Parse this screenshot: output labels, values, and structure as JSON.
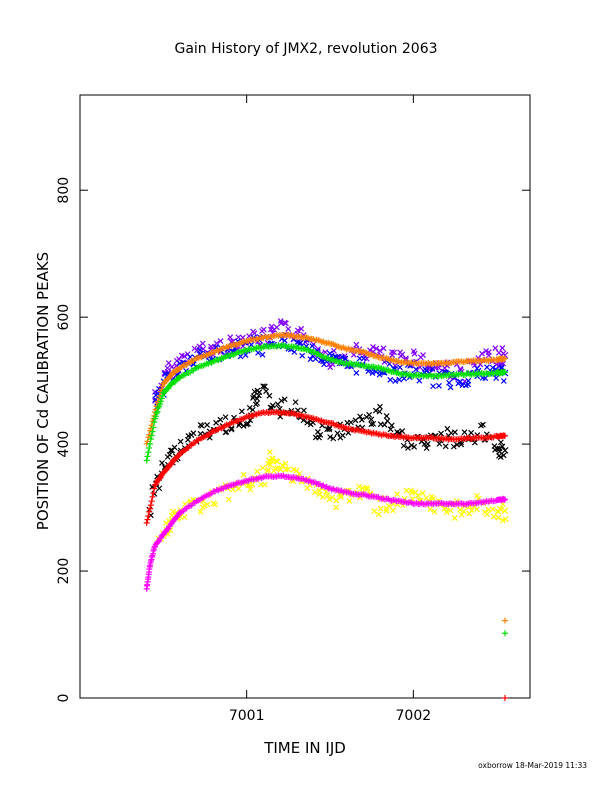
{
  "chart_data": {
    "type": "scatter",
    "title": "Gain History of JMX2, revolution 2063",
    "xlabel": "TIME IN IJD",
    "ylabel": "POSITION OF Cd CALIBRATION PEAKS",
    "xlim": [
      7000.0,
      7002.7
    ],
    "ylim": [
      0,
      950
    ],
    "x_ticks": [
      7001,
      7002
    ],
    "y_ticks": [
      0,
      200,
      400,
      600,
      800
    ],
    "grid": false,
    "footer": "oxborrow 18-Mar-2019 11:33",
    "series": [
      {
        "color": "#ff8000",
        "marker": "plus",
        "x": [
          7000.4,
          7000.45,
          7000.5,
          7000.55,
          7000.6,
          7000.7,
          7000.8,
          7000.9,
          7001.0,
          7001.1,
          7001.2,
          7001.3,
          7001.4,
          7001.5,
          7001.6,
          7001.7,
          7001.8,
          7001.9,
          7002.0,
          7002.1,
          7002.2,
          7002.3,
          7002.4,
          7002.5,
          7002.55
        ],
        "y": [
          400,
          450,
          495,
          510,
          520,
          535,
          545,
          555,
          562,
          568,
          572,
          570,
          565,
          558,
          550,
          545,
          537,
          530,
          527,
          527,
          528,
          530,
          531,
          533,
          535
        ]
      },
      {
        "color": "#00e000",
        "marker": "plus",
        "x": [
          7000.4,
          7000.45,
          7000.5,
          7000.55,
          7000.6,
          7000.7,
          7000.8,
          7000.9,
          7001.0,
          7001.1,
          7001.2,
          7001.3,
          7001.4,
          7001.5,
          7001.6,
          7001.7,
          7001.8,
          7001.9,
          7002.0,
          7002.1,
          7002.2,
          7002.3,
          7002.4,
          7002.5,
          7002.55
        ],
        "y": [
          375,
          440,
          480,
          495,
          505,
          520,
          530,
          540,
          548,
          553,
          555,
          553,
          545,
          533,
          527,
          524,
          520,
          512,
          508,
          508,
          508,
          510,
          511,
          512,
          513
        ]
      },
      {
        "color": "#ff0000",
        "marker": "plus",
        "x": [
          7000.4,
          7000.45,
          7000.5,
          7000.55,
          7000.6,
          7000.7,
          7000.8,
          7000.9,
          7001.0,
          7001.1,
          7001.2,
          7001.3,
          7001.4,
          7001.5,
          7001.6,
          7001.7,
          7001.8,
          7001.9,
          7002.0,
          7002.1,
          7002.2,
          7002.3,
          7002.4,
          7002.5,
          7002.55
        ],
        "y": [
          275,
          335,
          355,
          370,
          385,
          405,
          420,
          432,
          443,
          450,
          450,
          447,
          440,
          433,
          425,
          420,
          415,
          412,
          410,
          410,
          408,
          408,
          410,
          412,
          413
        ]
      },
      {
        "color": "#ff00ff",
        "marker": "plus",
        "x": [
          7000.4,
          7000.42,
          7000.45,
          7000.5,
          7000.55,
          7000.6,
          7000.7,
          7000.8,
          7000.9,
          7001.0,
          7001.1,
          7001.2,
          7001.3,
          7001.4,
          7001.5,
          7001.6,
          7001.7,
          7001.8,
          7001.9,
          7002.0,
          7002.1,
          7002.2,
          7002.3,
          7002.4,
          7002.5,
          7002.55
        ],
        "y": [
          172,
          210,
          240,
          258,
          275,
          292,
          310,
          325,
          335,
          342,
          348,
          350,
          347,
          340,
          330,
          324,
          320,
          315,
          310,
          307,
          306,
          306,
          306,
          308,
          311,
          313
        ]
      },
      {
        "color": "#8000ff",
        "marker": "cross",
        "x": [
          7000.45,
          7000.52,
          7000.6,
          7000.7,
          7000.8,
          7000.9,
          7001.0,
          7001.1,
          7001.2,
          7001.3,
          7001.4,
          7001.5,
          7001.6,
          7001.7,
          7001.8,
          7001.9,
          7002.0,
          7002.1,
          7002.2,
          7002.3,
          7002.4,
          7002.5,
          7002.55
        ],
        "y": [
          470,
          510,
          530,
          545,
          550,
          555,
          570,
          565,
          580,
          578,
          555,
          535,
          535,
          548,
          540,
          530,
          540,
          525,
          520,
          510,
          530,
          537,
          540
        ]
      },
      {
        "color": "#0000ff",
        "marker": "cross",
        "x": [
          7000.45,
          7000.52,
          7000.6,
          7000.7,
          7000.8,
          7000.9,
          7001.0,
          7001.1,
          7001.2,
          7001.3,
          7001.4,
          7001.5,
          7001.6,
          7001.7,
          7001.8,
          7001.9,
          7002.0,
          7002.1,
          7002.2,
          7002.3,
          7002.4,
          7002.5,
          7002.55
        ],
        "y": [
          460,
          500,
          520,
          535,
          540,
          548,
          553,
          555,
          560,
          555,
          545,
          530,
          525,
          525,
          520,
          510,
          515,
          505,
          500,
          505,
          510,
          512,
          512
        ]
      },
      {
        "color": "#000000",
        "marker": "cross",
        "x": [
          7000.42,
          7000.48,
          7000.55,
          7000.6,
          7000.7,
          7000.8,
          7000.9,
          7001.0,
          7001.05,
          7001.1,
          7001.2,
          7001.3,
          7001.4,
          7001.5,
          7001.6,
          7001.7,
          7001.8,
          7001.9,
          7002.0,
          7002.1,
          7002.2,
          7002.3,
          7002.4,
          7002.5,
          7002.55
        ],
        "y": [
          300,
          350,
          380,
          395,
          415,
          425,
          432,
          440,
          475,
          478,
          455,
          460,
          420,
          415,
          425,
          435,
          445,
          410,
          405,
          400,
          410,
          405,
          420,
          395,
          390
        ]
      },
      {
        "color": "#ffff00",
        "marker": "cross",
        "x": [
          7000.48,
          7000.55,
          7000.6,
          7000.7,
          7000.8,
          7000.9,
          7001.0,
          7001.1,
          7001.15,
          7001.2,
          7001.3,
          7001.4,
          7001.5,
          7001.6,
          7001.7,
          7001.8,
          7001.9,
          7002.0,
          7002.1,
          7002.2,
          7002.3,
          7002.4,
          7002.5,
          7002.55
        ],
        "y": [
          255,
          275,
          290,
          305,
          315,
          325,
          340,
          345,
          375,
          360,
          355,
          330,
          310,
          320,
          325,
          300,
          310,
          315,
          305,
          295,
          300,
          305,
          290,
          295
        ]
      }
    ],
    "out_of_range_markers": [
      {
        "color": "#ff8000",
        "marker": "plus",
        "x": 7002.55,
        "y": 122
      },
      {
        "color": "#00e000",
        "marker": "plus",
        "x": 7002.55,
        "y": 102
      },
      {
        "color": "#ff0000",
        "marker": "plus",
        "x": 7002.55,
        "y": 0
      }
    ]
  }
}
